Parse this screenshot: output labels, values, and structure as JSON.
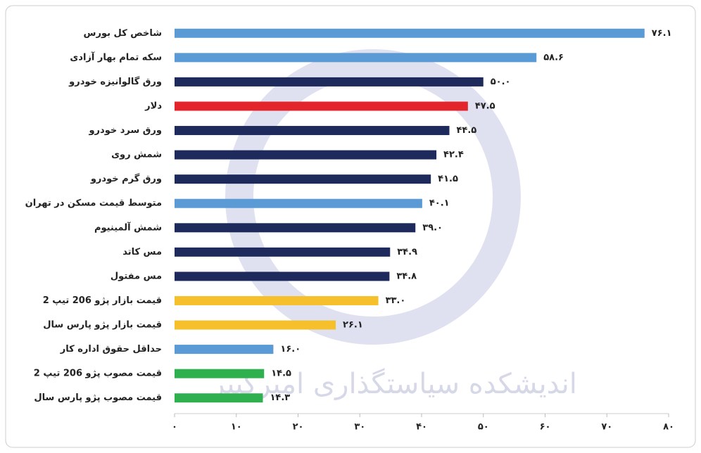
{
  "chart_data": {
    "type": "hbar",
    "watermark": "اندیشکده سیاستگذاری امیرکبیر",
    "categories": [
      "شاخص کل بورس",
      "سکه تمام بهار آزادی",
      "ورق گالوانیزه خودرو",
      "دلار",
      "ورق سرد خودرو",
      "شمش روی",
      "ورق گرم خودرو",
      "متوسط قیمت مسکن در تهران",
      "شمش آلمینیوم",
      "مس کاتد",
      "مس مفتول",
      "قیمت بازار پژو 206 تیپ 2",
      "قیمت بازار پژو پارس سال",
      "حداقل حقوق اداره کار",
      "قیمت مصوب پژو 206 تیپ 2",
      "قیمت مصوب پژو پارس سال"
    ],
    "values": [
      76.1,
      58.6,
      50.0,
      47.5,
      44.5,
      42.4,
      41.5,
      40.1,
      39.0,
      34.9,
      34.8,
      33.0,
      26.1,
      16.0,
      14.5,
      14.3
    ],
    "value_labels": [
      "۷۶.۱",
      "۵۸.۶",
      "۵۰.۰",
      "۴۷.۵",
      "۴۴.۵",
      "۴۲.۴",
      "۴۱.۵",
      "۴۰.۱",
      "۳۹.۰",
      "۳۴.۹",
      "۳۴.۸",
      "۳۳.۰",
      "۲۶.۱",
      "۱۶.۰",
      "۱۴.۵",
      "۱۴.۳"
    ],
    "colors": [
      "#5b9bd5",
      "#5b9bd5",
      "#1f2a5c",
      "#e3242b",
      "#1f2a5c",
      "#1f2a5c",
      "#1f2a5c",
      "#5b9bd5",
      "#1f2a5c",
      "#1f2a5c",
      "#1f2a5c",
      "#f6c02c",
      "#f6c02c",
      "#5b9bd5",
      "#2eb04f",
      "#2eb04f"
    ],
    "xlim": [
      0,
      80
    ],
    "xticks": [
      {
        "value": 0,
        "label": "۰"
      },
      {
        "value": 10,
        "label": "۱۰"
      },
      {
        "value": 20,
        "label": "۲۰"
      },
      {
        "value": 30,
        "label": "۳۰"
      },
      {
        "value": 40,
        "label": "۴۰"
      },
      {
        "value": 50,
        "label": "۵۰"
      },
      {
        "value": 60,
        "label": "۶۰"
      },
      {
        "value": 70,
        "label": "۷۰"
      },
      {
        "value": 80,
        "label": "۸۰"
      }
    ]
  }
}
